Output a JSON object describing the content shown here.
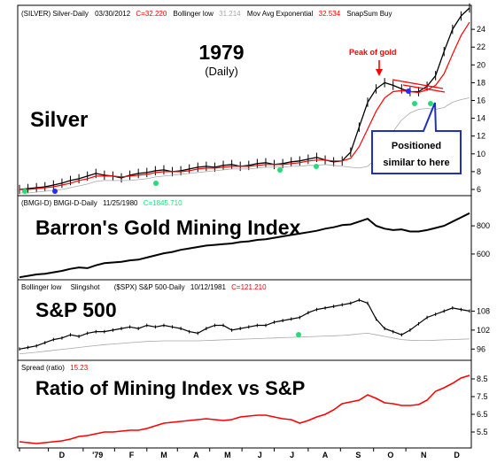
{
  "colors": {
    "price": "#000000",
    "ema": "#ff0000",
    "bollinger": "#a8a8a8",
    "signal": "#22dd77",
    "signal_alt": "#2a2aff",
    "annotation_red": "#ff0000",
    "callout_border": "#1f2fbf"
  },
  "x_axis": {
    "months": [
      "D",
      "'79",
      "F",
      "M",
      "A",
      "M",
      "J",
      "J",
      "A",
      "S",
      "O",
      "N",
      "D"
    ]
  },
  "panels": {
    "silver": {
      "header": {
        "symbol": "(SILVER) Silver-Daily",
        "date": "03/30/2012",
        "close": "C=32.220",
        "boll_label": "Bollinger low",
        "boll_value": "31.214",
        "ema_label": "Mov Avg Exponential",
        "ema_value": "32.534",
        "snap": "SnapSum Buy"
      },
      "title": "1979",
      "subtitle": "(Daily)",
      "name": "Silver",
      "peak_label": "Peak of gold",
      "callout": {
        "line1": "Positioned",
        "line2": "similar to here"
      }
    },
    "gold": {
      "header": {
        "symbol": "(BMGI-D) BMGI-D-Daily",
        "date": "11/25/1980",
        "close": "C=1845.710"
      },
      "name": "Barron's Gold Mining Index"
    },
    "sp": {
      "header": {
        "boll_label": "Bollinger low",
        "slingshot": "Slingshot",
        "symbol": "($SPX) S&P 500-Daily",
        "date": "10/12/1981",
        "close": "C=121.210"
      },
      "name": "S&P 500"
    },
    "ratio": {
      "header": {
        "label": "Spread (ratio)",
        "value": "15.23"
      },
      "name": "Ratio of Mining Index vs S&P"
    }
  },
  "chart_data": [
    {
      "type": "line",
      "panel": "Silver",
      "title": "1979",
      "subtitle": "(Daily)",
      "x": [
        0,
        10,
        20,
        30,
        40,
        50,
        60,
        70,
        80,
        90,
        100,
        110,
        120,
        130,
        140,
        150,
        160,
        170,
        180,
        190,
        200,
        210,
        220,
        230,
        240,
        250,
        260,
        270,
        280,
        290,
        300,
        310,
        320,
        330,
        340,
        350,
        360,
        370,
        380,
        390,
        400,
        410,
        420,
        430,
        440,
        450,
        460,
        470,
        480,
        490,
        500,
        510,
        520,
        530
      ],
      "series": [
        {
          "name": "",
          "values": [
            6.0,
            6.1,
            6.2,
            6.3,
            6.5,
            6.7,
            7.0,
            7.2,
            7.5,
            7.8,
            7.6,
            7.5,
            7.3,
            7.6,
            7.8,
            7.9,
            8.1,
            8.2,
            8.0,
            8.1,
            8.3,
            8.5,
            8.6,
            8.5,
            8.7,
            8.8,
            8.6,
            8.7,
            8.9,
            9.0,
            8.8,
            8.9,
            9.1,
            9.2,
            9.4,
            9.6,
            9.3,
            9.1,
            9.2,
            10.2,
            13.0,
            15.8,
            17.3,
            18.0,
            17.7,
            17.3,
            17.0,
            17.0,
            17.6,
            18.8,
            21.5,
            24.0,
            25.5,
            26.4
          ]
        },
        {
          "name": "Mov Avg Exponential",
          "values": [
            6.0,
            6.0,
            6.1,
            6.2,
            6.3,
            6.5,
            6.7,
            7.0,
            7.2,
            7.5,
            7.5,
            7.5,
            7.4,
            7.5,
            7.6,
            7.7,
            7.9,
            8.0,
            8.0,
            8.0,
            8.1,
            8.3,
            8.4,
            8.4,
            8.5,
            8.6,
            8.6,
            8.6,
            8.7,
            8.8,
            8.8,
            8.8,
            8.9,
            9.0,
            9.2,
            9.3,
            9.3,
            9.2,
            9.2,
            9.5,
            10.8,
            12.8,
            14.8,
            16.3,
            17.0,
            17.1,
            17.0,
            16.9,
            17.2,
            17.7,
            19.0,
            21.2,
            23.3,
            24.8
          ]
        },
        {
          "name": "Bollinger low",
          "values": [
            5.6,
            5.6,
            5.7,
            5.8,
            5.9,
            6.0,
            6.2,
            6.4,
            6.6,
            6.9,
            7.0,
            7.0,
            7.0,
            7.0,
            7.1,
            7.2,
            7.4,
            7.5,
            7.6,
            7.7,
            7.8,
            7.9,
            8.0,
            8.1,
            8.2,
            8.3,
            8.3,
            8.3,
            8.4,
            8.5,
            8.5,
            8.5,
            8.6,
            8.6,
            8.7,
            8.7,
            8.8,
            8.7,
            8.6,
            8.5,
            8.4,
            8.6,
            9.5,
            11.0,
            12.5,
            13.8,
            14.6,
            15.0,
            15.1,
            15.0,
            15.2,
            15.8,
            16.1,
            16.3
          ]
        }
      ],
      "ylim": [
        5.5,
        26.5
      ],
      "yticks": [
        6,
        8,
        10,
        12,
        14,
        16,
        18,
        20,
        22,
        24
      ]
    },
    {
      "type": "line",
      "panel": "Barron's Gold Mining Index",
      "x": [
        0,
        10,
        20,
        30,
        40,
        50,
        60,
        70,
        80,
        90,
        100,
        110,
        120,
        130,
        140,
        150,
        160,
        170,
        180,
        190,
        200,
        210,
        220,
        230,
        240,
        250,
        260,
        270,
        280,
        290,
        300,
        310,
        320,
        330,
        340,
        350,
        360,
        370,
        380,
        390,
        400,
        410,
        420,
        430,
        440,
        450,
        460,
        470,
        480,
        490,
        500,
        510,
        520,
        530
      ],
      "series": [
        {
          "name": "",
          "values": [
            435,
            445,
            455,
            460,
            470,
            480,
            495,
            505,
            500,
            520,
            535,
            540,
            545,
            555,
            560,
            575,
            590,
            605,
            615,
            630,
            640,
            650,
            660,
            665,
            670,
            675,
            685,
            690,
            700,
            705,
            715,
            725,
            735,
            745,
            755,
            765,
            780,
            790,
            805,
            810,
            830,
            850,
            800,
            780,
            770,
            775,
            760,
            760,
            770,
            785,
            800,
            830,
            860,
            890
          ]
        }
      ],
      "ylim": [
        430,
        920
      ],
      "yticks": [
        600,
        800
      ]
    },
    {
      "type": "line",
      "panel": "S&P 500",
      "x": [
        0,
        10,
        20,
        30,
        40,
        50,
        60,
        70,
        80,
        90,
        100,
        110,
        120,
        130,
        140,
        150,
        160,
        170,
        180,
        190,
        200,
        210,
        220,
        230,
        240,
        250,
        260,
        270,
        280,
        290,
        300,
        310,
        320,
        330,
        340,
        350,
        360,
        370,
        380,
        390,
        400,
        410,
        420,
        430,
        440,
        450,
        460,
        470,
        480,
        490,
        500,
        510,
        520,
        530
      ],
      "series": [
        {
          "name": "",
          "values": [
            96.0,
            96.5,
            97.0,
            98.0,
            99.0,
            99.5,
            100.5,
            100.0,
            101.0,
            101.5,
            101.5,
            102.0,
            102.5,
            103.0,
            102.5,
            103.5,
            103.0,
            103.5,
            103.0,
            102.5,
            101.5,
            101.0,
            102.5,
            103.5,
            103.5,
            102.0,
            102.5,
            103.0,
            103.5,
            103.5,
            104.5,
            105.0,
            105.5,
            106.0,
            107.5,
            108.5,
            109.0,
            109.5,
            110.0,
            110.5,
            111.5,
            110.5,
            105.5,
            102.5,
            101.5,
            100.5,
            102.0,
            104.0,
            106.0,
            107.0,
            108.0,
            109.0,
            108.5,
            108.0
          ]
        },
        {
          "name": "Bollinger low",
          "values": [
            94.5,
            94.7,
            95.0,
            95.3,
            95.6,
            95.9,
            96.2,
            96.5,
            96.8,
            97.1,
            97.4,
            97.6,
            97.8,
            98.0,
            98.2,
            98.4,
            98.5,
            98.6,
            98.6,
            98.6,
            98.6,
            98.6,
            98.7,
            98.8,
            98.9,
            99.0,
            99.1,
            99.2,
            99.3,
            99.4,
            99.5,
            99.6,
            99.7,
            99.8,
            99.9,
            100.0,
            100.1,
            100.2,
            100.3,
            100.5,
            100.8,
            101.0,
            100.5,
            100.0,
            99.5,
            99.0,
            98.8,
            98.7,
            98.7,
            98.8,
            98.9,
            99.0,
            99.1,
            99.2
          ]
        }
      ],
      "ylim": [
        93,
        114
      ],
      "yticks": [
        96,
        102,
        108
      ]
    },
    {
      "type": "line",
      "panel": "Ratio of Mining Index vs S&P",
      "x": [
        0,
        10,
        20,
        30,
        40,
        50,
        60,
        70,
        80,
        90,
        100,
        110,
        120,
        130,
        140,
        150,
        160,
        170,
        180,
        190,
        200,
        210,
        220,
        230,
        240,
        250,
        260,
        270,
        280,
        290,
        300,
        310,
        320,
        330,
        340,
        350,
        360,
        370,
        380,
        390,
        400,
        410,
        420,
        430,
        440,
        450,
        460,
        470,
        480,
        490,
        500,
        510,
        520,
        530
      ],
      "series": [
        {
          "name": "",
          "values": [
            4.95,
            4.9,
            4.85,
            4.9,
            4.95,
            5.0,
            5.1,
            5.25,
            5.3,
            5.4,
            5.5,
            5.5,
            5.55,
            5.6,
            5.6,
            5.7,
            5.85,
            6.0,
            6.05,
            6.1,
            6.15,
            6.2,
            6.25,
            6.2,
            6.15,
            6.2,
            6.35,
            6.4,
            6.45,
            6.45,
            6.35,
            6.25,
            6.2,
            6.0,
            6.15,
            6.35,
            6.5,
            6.75,
            7.1,
            7.2,
            7.3,
            7.6,
            7.4,
            7.15,
            7.1,
            7.0,
            7.0,
            7.05,
            7.3,
            7.8,
            8.0,
            8.25,
            8.55,
            8.7
          ]
        }
      ],
      "ylim": [
        4.7,
        8.9
      ],
      "yticks": [
        5.5,
        6.5,
        7.5,
        8.5
      ]
    }
  ]
}
